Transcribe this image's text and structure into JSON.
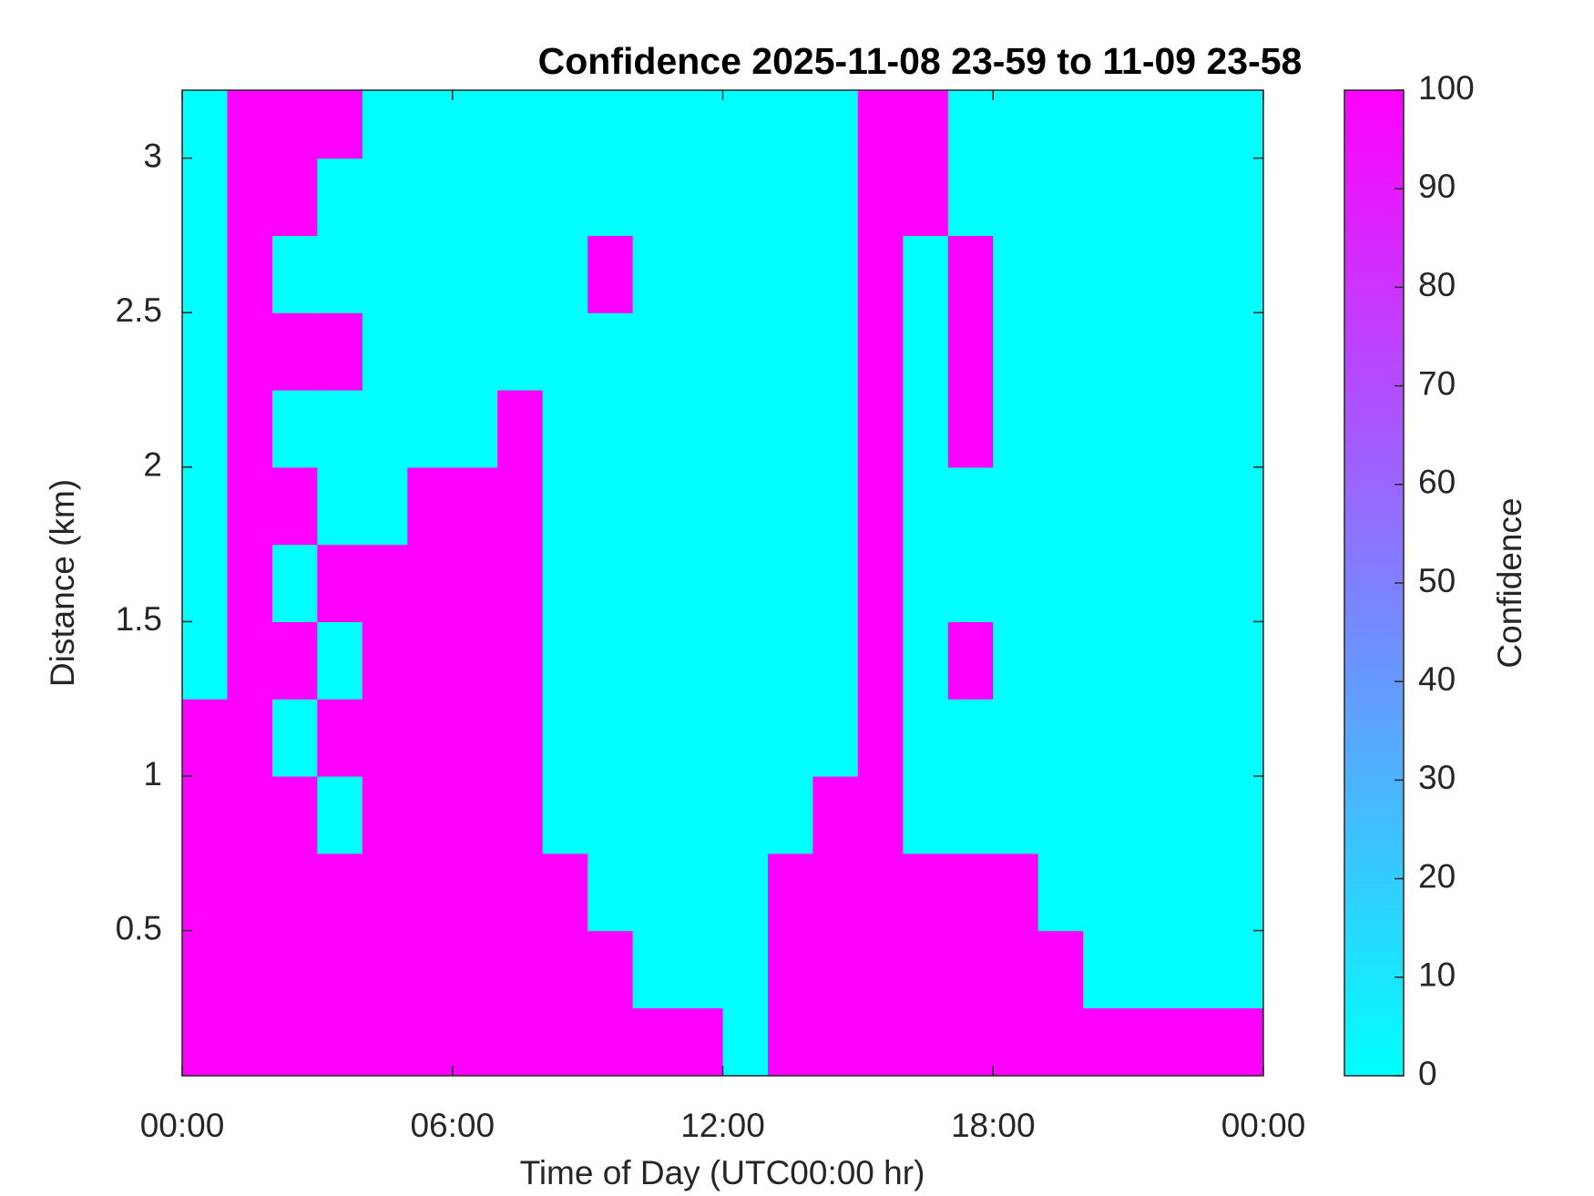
{
  "chart_data": {
    "type": "heatmap",
    "title": "Confidence 2025-11-08 23-59 to 11-09 23-58",
    "xlabel": "Time of Day (UTC00:00 hr)",
    "ylabel": "Distance (km)",
    "colorbar_label": "Confidence",
    "colors": [
      "#00ffff",
      "#ff00ff"
    ],
    "x": [
      0.5,
      1.5,
      2.5,
      3.5,
      4.5,
      5.5,
      6.5,
      7.5,
      8.5,
      9.5,
      10.5,
      11.5,
      12.5,
      13.5,
      14.5,
      15.5,
      16.5,
      17.5,
      18.5,
      19.5,
      20.5,
      21.5,
      22.5,
      23.5
    ],
    "y": [
      0.125,
      0.375,
      0.625,
      0.875,
      1.125,
      1.375,
      1.625,
      1.875,
      2.125,
      2.375,
      2.625,
      2.875,
      3.125
    ],
    "z": [
      [
        100,
        100,
        100,
        100,
        100,
        100,
        100,
        100,
        100,
        100,
        100,
        100,
        0,
        100,
        100,
        100,
        100,
        100,
        100,
        100,
        100,
        100,
        100,
        100
      ],
      [
        100,
        100,
        100,
        100,
        100,
        100,
        100,
        100,
        100,
        100,
        0,
        0,
        0,
        100,
        100,
        100,
        100,
        100,
        100,
        100,
        0,
        0,
        0,
        0
      ],
      [
        100,
        100,
        100,
        100,
        100,
        100,
        100,
        100,
        100,
        0,
        0,
        0,
        0,
        100,
        100,
        100,
        100,
        100,
        100,
        0,
        0,
        0,
        0,
        0
      ],
      [
        100,
        100,
        100,
        0,
        100,
        100,
        100,
        100,
        0,
        0,
        0,
        0,
        0,
        0,
        100,
        100,
        0,
        0,
        0,
        0,
        0,
        0,
        0,
        0
      ],
      [
        100,
        100,
        0,
        100,
        100,
        100,
        100,
        100,
        0,
        0,
        0,
        0,
        0,
        0,
        0,
        100,
        0,
        0,
        0,
        0,
        0,
        0,
        0,
        0
      ],
      [
        0,
        100,
        100,
        0,
        100,
        100,
        100,
        100,
        0,
        0,
        0,
        0,
        0,
        0,
        0,
        100,
        0,
        100,
        0,
        0,
        0,
        0,
        0,
        0
      ],
      [
        0,
        100,
        0,
        100,
        100,
        100,
        100,
        100,
        0,
        0,
        0,
        0,
        0,
        0,
        0,
        100,
        0,
        0,
        0,
        0,
        0,
        0,
        0,
        0
      ],
      [
        0,
        100,
        100,
        0,
        0,
        100,
        100,
        100,
        0,
        0,
        0,
        0,
        0,
        0,
        0,
        100,
        0,
        0,
        0,
        0,
        0,
        0,
        0,
        0
      ],
      [
        0,
        100,
        0,
        0,
        0,
        0,
        0,
        100,
        0,
        0,
        0,
        0,
        0,
        0,
        0,
        100,
        0,
        100,
        0,
        0,
        0,
        0,
        0,
        0
      ],
      [
        0,
        100,
        100,
        100,
        0,
        0,
        0,
        0,
        0,
        0,
        0,
        0,
        0,
        0,
        0,
        100,
        0,
        100,
        0,
        0,
        0,
        0,
        0,
        0
      ],
      [
        0,
        100,
        0,
        0,
        0,
        0,
        0,
        0,
        0,
        100,
        0,
        0,
        0,
        0,
        0,
        100,
        0,
        100,
        0,
        0,
        0,
        0,
        0,
        0
      ],
      [
        0,
        100,
        100,
        0,
        0,
        0,
        0,
        0,
        0,
        0,
        0,
        0,
        0,
        0,
        0,
        100,
        100,
        0,
        0,
        0,
        0,
        0,
        0,
        0
      ],
      [
        0,
        100,
        100,
        100,
        0,
        0,
        0,
        0,
        0,
        0,
        0,
        0,
        0,
        0,
        0,
        100,
        100,
        0,
        0,
        0,
        0,
        0,
        0,
        0
      ]
    ],
    "xlim": [
      0,
      24
    ],
    "xticks": [
      {
        "value": 0,
        "label": "00:00"
      },
      {
        "value": 6,
        "label": "06:00"
      },
      {
        "value": 12,
        "label": "12:00"
      },
      {
        "value": 18,
        "label": "18:00"
      },
      {
        "value": 24,
        "label": "00:00"
      }
    ],
    "ylim": [
      0.03,
      3.22
    ],
    "yticks": [
      0.5,
      1,
      1.5,
      2,
      2.5,
      3
    ],
    "clim": [
      0,
      100
    ],
    "cticks": [
      0,
      10,
      20,
      30,
      40,
      50,
      60,
      70,
      80,
      90,
      100
    ]
  }
}
